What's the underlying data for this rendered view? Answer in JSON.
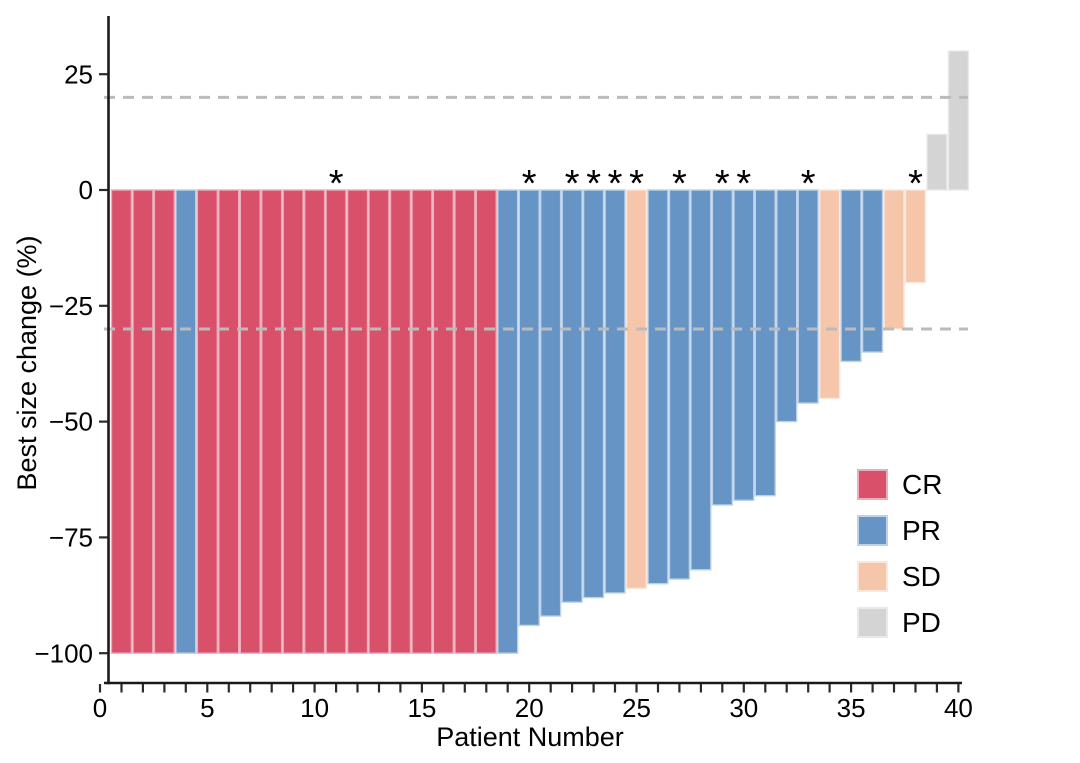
{
  "chart_data": {
    "type": "bar",
    "variant": "waterfall",
    "title": "",
    "xlabel": "Patient Number",
    "ylabel": "Best size change (%)",
    "x_ticks": [
      0,
      5,
      10,
      15,
      20,
      25,
      30,
      35,
      40
    ],
    "x_tick_labels": [
      "0",
      "5",
      "10",
      "15",
      "20",
      "25",
      "30",
      "35",
      "40"
    ],
    "x_minor_tick_every": 1,
    "y_ticks": [
      25,
      0,
      -25,
      -50,
      -75,
      -100
    ],
    "y_tick_labels": [
      "25",
      "0",
      "−25",
      "−50",
      "−75",
      "−100"
    ],
    "xlim": [
      0,
      40
    ],
    "ylim": [
      -100,
      30
    ],
    "grid": false,
    "reference_lines": [
      20,
      -30
    ],
    "reference_line_style": "dashed",
    "reference_line_color": "#BBBBBB",
    "axis_color": "#1A1A1A",
    "asterisk_symbol": "*",
    "asterisk_patients": [
      11,
      20,
      22,
      23,
      24,
      25,
      27,
      29,
      30,
      33,
      38
    ],
    "legend": {
      "position": "inside-right-bottom",
      "entries": [
        {
          "label": "CR",
          "color": "#D9506A"
        },
        {
          "label": "PR",
          "color": "#6594C5"
        },
        {
          "label": "SD",
          "color": "#F6C6AB"
        },
        {
          "label": "PD",
          "color": "#D4D4D4"
        }
      ]
    },
    "colors": {
      "CR": "#D9506A",
      "PR": "#6594C5",
      "SD": "#F6C6AB",
      "PD": "#D4D4D4"
    },
    "edge_colors": {
      "CR": "#ECACB9",
      "PR": "#BDD2EA",
      "SD": "#FBE6DA",
      "PD": "#E9E9E9"
    },
    "patients": [
      {
        "patient": 1,
        "value": -100,
        "response": "CR"
      },
      {
        "patient": 2,
        "value": -100,
        "response": "CR"
      },
      {
        "patient": 3,
        "value": -100,
        "response": "CR"
      },
      {
        "patient": 4,
        "value": -100,
        "response": "PR"
      },
      {
        "patient": 5,
        "value": -100,
        "response": "CR"
      },
      {
        "patient": 6,
        "value": -100,
        "response": "CR"
      },
      {
        "patient": 7,
        "value": -100,
        "response": "CR"
      },
      {
        "patient": 8,
        "value": -100,
        "response": "CR"
      },
      {
        "patient": 9,
        "value": -100,
        "response": "CR"
      },
      {
        "patient": 10,
        "value": -100,
        "response": "CR"
      },
      {
        "patient": 11,
        "value": -100,
        "response": "CR"
      },
      {
        "patient": 12,
        "value": -100,
        "response": "CR"
      },
      {
        "patient": 13,
        "value": -100,
        "response": "CR"
      },
      {
        "patient": 14,
        "value": -100,
        "response": "CR"
      },
      {
        "patient": 15,
        "value": -100,
        "response": "CR"
      },
      {
        "patient": 16,
        "value": -100,
        "response": "CR"
      },
      {
        "patient": 17,
        "value": -100,
        "response": "CR"
      },
      {
        "patient": 18,
        "value": -100,
        "response": "CR"
      },
      {
        "patient": 19,
        "value": -100,
        "response": "PR"
      },
      {
        "patient": 20,
        "value": -94,
        "response": "PR"
      },
      {
        "patient": 21,
        "value": -92,
        "response": "PR"
      },
      {
        "patient": 22,
        "value": -89,
        "response": "PR"
      },
      {
        "patient": 23,
        "value": -88,
        "response": "PR"
      },
      {
        "patient": 24,
        "value": -87,
        "response": "PR"
      },
      {
        "patient": 25,
        "value": -86,
        "response": "SD"
      },
      {
        "patient": 26,
        "value": -85,
        "response": "PR"
      },
      {
        "patient": 27,
        "value": -84,
        "response": "PR"
      },
      {
        "patient": 28,
        "value": -82,
        "response": "PR"
      },
      {
        "patient": 29,
        "value": -68,
        "response": "PR"
      },
      {
        "patient": 30,
        "value": -67,
        "response": "PR"
      },
      {
        "patient": 31,
        "value": -66,
        "response": "PR"
      },
      {
        "patient": 32,
        "value": -50,
        "response": "PR"
      },
      {
        "patient": 33,
        "value": -46,
        "response": "PR"
      },
      {
        "patient": 34,
        "value": -45,
        "response": "SD"
      },
      {
        "patient": 35,
        "value": -37,
        "response": "PR"
      },
      {
        "patient": 36,
        "value": -35,
        "response": "PR"
      },
      {
        "patient": 37,
        "value": -30,
        "response": "SD"
      },
      {
        "patient": 38,
        "value": -20,
        "response": "SD"
      },
      {
        "patient": 39,
        "value": 12,
        "response": "PD"
      },
      {
        "patient": 40,
        "value": 30,
        "response": "PD"
      }
    ]
  }
}
